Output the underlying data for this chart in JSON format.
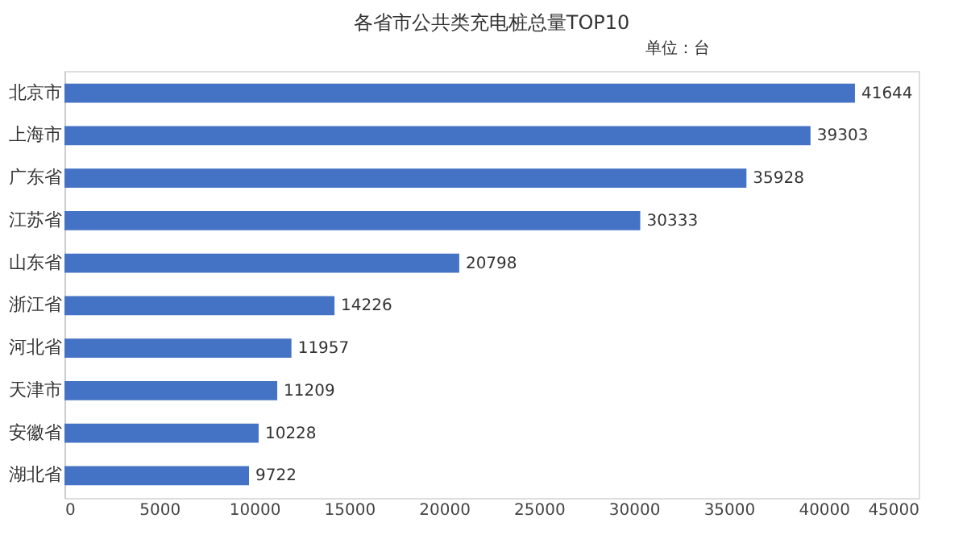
{
  "chart_data": {
    "type": "bar",
    "orientation": "horizontal",
    "title": "各省市公共类充电桩总量TOP10",
    "annotations": [
      "单位：台"
    ],
    "categories": [
      "北京市",
      "上海市",
      "广东省",
      "江苏省",
      "山东省",
      "浙江省",
      "河北省",
      "天津市",
      "安徽省",
      "湖北省"
    ],
    "values": [
      41644,
      39303,
      35928,
      30333,
      20798,
      14226,
      11957,
      11209,
      10228,
      9722
    ],
    "color": "#4472c4",
    "data_labels": true,
    "xlim": [
      0,
      45000
    ],
    "xticks": [
      0,
      5000,
      10000,
      15000,
      20000,
      25000,
      30000,
      35000,
      40000,
      45000
    ],
    "grid": false
  }
}
